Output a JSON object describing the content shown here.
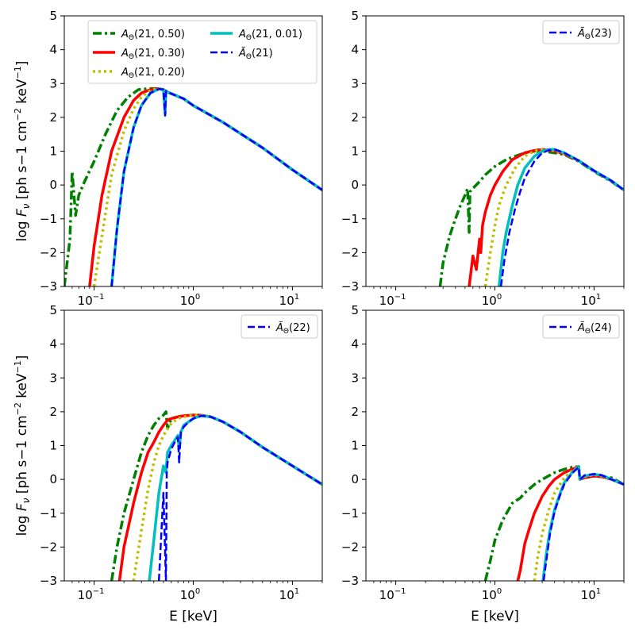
{
  "chart_data": [
    {
      "id": "tl",
      "type": "line",
      "xscale": "log",
      "xlim": [
        0.05,
        20
      ],
      "ylim": [
        -3,
        5
      ],
      "xlabel": "",
      "ylabel": "log F_ν [ph s−1 cm−2 keV−1]",
      "ytick_labels": [
        "−3",
        "−2",
        "−1",
        "0",
        "1",
        "2",
        "3",
        "4",
        "5"
      ],
      "xtick_labels": [
        "10^-1",
        "10^0",
        "10^1"
      ],
      "legend": {
        "placement": "upper-center",
        "columns": 2,
        "entries": [
          "AΘ(21, 0.50)",
          "AΘ(21, 0.30)",
          "AΘ(21, 0.20)",
          "AΘ(21, 0.01)",
          "ÃΘ(21)"
        ]
      },
      "series": [
        {
          "name": "AΘ(21, 0.50)",
          "color": "#008000",
          "style": "dashdot",
          "x": [
            0.05,
            0.057,
            0.06,
            0.065,
            0.07,
            0.08,
            0.1,
            0.13,
            0.17,
            0.22,
            0.28,
            0.35,
            0.42,
            0.5,
            0.55,
            0.6,
            0.8,
            1,
            2,
            5,
            10,
            20
          ],
          "y": [
            -3,
            -1.6,
            0.4,
            -0.9,
            -0.3,
            0.1,
            0.7,
            1.5,
            2.2,
            2.6,
            2.82,
            2.85,
            2.85,
            2.82,
            2.75,
            2.7,
            2.55,
            2.35,
            1.85,
            1.1,
            0.45,
            -0.15
          ]
        },
        {
          "name": "AΘ(21, 0.30)",
          "color": "#ff0000",
          "style": "solid",
          "x": [
            0.09,
            0.1,
            0.12,
            0.15,
            0.2,
            0.25,
            0.3,
            0.37,
            0.45,
            0.5,
            0.55,
            0.6,
            0.8,
            1,
            2,
            5,
            10,
            20
          ],
          "y": [
            -3,
            -1.8,
            -0.3,
            1.0,
            2.0,
            2.5,
            2.72,
            2.82,
            2.85,
            2.82,
            2.75,
            2.7,
            2.55,
            2.35,
            1.85,
            1.1,
            0.45,
            -0.15
          ]
        },
        {
          "name": "AΘ(21, 0.20)",
          "color": "#bfbf00",
          "style": "dotted",
          "x": [
            0.1,
            0.12,
            0.15,
            0.2,
            0.25,
            0.3,
            0.37,
            0.45,
            0.5,
            0.55,
            0.6,
            0.8,
            1,
            2,
            5,
            10,
            20
          ],
          "y": [
            -3,
            -1.5,
            0.3,
            1.6,
            2.25,
            2.6,
            2.8,
            2.85,
            2.82,
            2.75,
            2.7,
            2.55,
            2.35,
            1.85,
            1.1,
            0.45,
            -0.15
          ]
        },
        {
          "name": "AΘ(21, 0.01)",
          "color": "#00bfbf",
          "style": "solid",
          "x": [
            0.15,
            0.17,
            0.2,
            0.25,
            0.3,
            0.37,
            0.45,
            0.5,
            0.52,
            0.53,
            0.55,
            0.6,
            0.8,
            1,
            2,
            5,
            10,
            20
          ],
          "y": [
            -3,
            -1.3,
            0.4,
            1.7,
            2.35,
            2.72,
            2.84,
            2.82,
            2.1,
            2.78,
            2.75,
            2.7,
            2.55,
            2.35,
            1.85,
            1.1,
            0.45,
            -0.15
          ]
        },
        {
          "name": "ÃΘ(21)",
          "color": "#0000ff",
          "style": "dashed",
          "x": [
            0.15,
            0.17,
            0.2,
            0.25,
            0.3,
            0.37,
            0.45,
            0.5,
            0.52,
            0.53,
            0.55,
            0.6,
            0.8,
            1,
            2,
            5,
            10,
            20
          ],
          "y": [
            -3,
            -1.3,
            0.4,
            1.7,
            2.35,
            2.72,
            2.84,
            2.82,
            2.05,
            2.78,
            2.75,
            2.7,
            2.55,
            2.35,
            1.85,
            1.1,
            0.45,
            -0.15
          ]
        }
      ]
    },
    {
      "id": "tr",
      "type": "line",
      "xscale": "log",
      "xlim": [
        0.05,
        20
      ],
      "ylim": [
        -3,
        5
      ],
      "xlabel": "",
      "ylabel": "",
      "ytick_labels": [
        "−3",
        "−2",
        "−1",
        "0",
        "1",
        "2",
        "3",
        "4",
        "5"
      ],
      "xtick_labels": [
        "10^-1",
        "10^0",
        "10^1"
      ],
      "legend": {
        "placement": "upper-right",
        "columns": 1,
        "entries": [
          "ÃΘ(23)"
        ]
      },
      "series": [
        {
          "name": "",
          "color": "#008000",
          "style": "dashdot",
          "x": [
            0.28,
            0.3,
            0.35,
            0.4,
            0.45,
            0.5,
            0.53,
            0.55,
            0.56,
            0.6,
            0.7,
            0.8,
            1,
            1.3,
            1.6,
            2,
            2.5,
            3,
            4,
            5,
            7,
            10,
            15,
            20
          ],
          "y": [
            -3,
            -2.3,
            -1.5,
            -1.0,
            -0.6,
            -0.3,
            -0.1,
            -1.4,
            -0.2,
            -0.1,
            0.1,
            0.3,
            0.55,
            0.75,
            0.85,
            0.95,
            1.0,
            1.0,
            0.95,
            0.9,
            0.7,
            0.4,
            0.1,
            -0.15
          ]
        },
        {
          "name": "",
          "color": "#ff0000",
          "style": "solid",
          "x": [
            0.55,
            0.6,
            0.65,
            0.7,
            0.72,
            0.75,
            0.8,
            0.9,
            1,
            1.2,
            1.5,
            2,
            2.5,
            3,
            4,
            5,
            7,
            10,
            15,
            20
          ],
          "y": [
            -3,
            -2.1,
            -2.5,
            -1.6,
            -2.0,
            -1.2,
            -0.8,
            -0.3,
            0.0,
            0.4,
            0.75,
            0.95,
            1.02,
            1.05,
            1.0,
            0.92,
            0.72,
            0.42,
            0.12,
            -0.15
          ]
        },
        {
          "name": "",
          "color": "#bfbf00",
          "style": "dotted",
          "x": [
            0.8,
            0.9,
            1,
            1.1,
            1.3,
            1.6,
            2,
            2.5,
            3,
            4,
            5,
            7,
            10,
            15,
            20
          ],
          "y": [
            -3,
            -2.0,
            -1.2,
            -0.6,
            0.0,
            0.5,
            0.85,
            1.0,
            1.05,
            1.02,
            0.93,
            0.73,
            0.42,
            0.12,
            -0.15
          ]
        },
        {
          "name": "",
          "color": "#00bfbf",
          "style": "solid",
          "x": [
            1.1,
            1.2,
            1.3,
            1.5,
            1.7,
            2,
            2.5,
            3,
            3.5,
            4,
            5,
            7,
            10,
            15,
            20
          ],
          "y": [
            -3,
            -2.0,
            -1.4,
            -0.6,
            0.0,
            0.5,
            0.85,
            1.0,
            1.05,
            1.05,
            0.95,
            0.72,
            0.42,
            0.12,
            -0.15
          ]
        },
        {
          "name": "ÃΘ(23)",
          "color": "#0000ff",
          "style": "dashed",
          "x": [
            1.15,
            1.25,
            1.4,
            1.6,
            1.8,
            2,
            2.5,
            3,
            3.5,
            4,
            5,
            7,
            10,
            15,
            20
          ],
          "y": [
            -3,
            -2.2,
            -1.4,
            -0.7,
            -0.2,
            0.2,
            0.7,
            0.95,
            1.03,
            1.05,
            0.95,
            0.72,
            0.42,
            0.12,
            -0.15
          ]
        }
      ]
    },
    {
      "id": "bl",
      "type": "line",
      "xscale": "log",
      "xlim": [
        0.05,
        20
      ],
      "ylim": [
        -3,
        5
      ],
      "xlabel": "E [keV]",
      "ylabel": "log F_ν [ph s−1 cm−2 keV−1]",
      "ytick_labels": [
        "−3",
        "−2",
        "−1",
        "0",
        "1",
        "2",
        "3",
        "4",
        "5"
      ],
      "xtick_labels": [
        "10^-1",
        "10^0",
        "10^1"
      ],
      "legend": {
        "placement": "upper-right",
        "columns": 1,
        "entries": [
          "ÃΘ(22)"
        ]
      },
      "series": [
        {
          "name": "",
          "color": "#008000",
          "style": "dashdot",
          "x": [
            0.15,
            0.17,
            0.2,
            0.25,
            0.3,
            0.35,
            0.4,
            0.45,
            0.5,
            0.53,
            0.55,
            0.6,
            0.7,
            0.8,
            1,
            1.2,
            1.5,
            2,
            3,
            5,
            10,
            20
          ],
          "y": [
            -3,
            -2.0,
            -1.0,
            0.0,
            0.8,
            1.3,
            1.6,
            1.8,
            1.9,
            2.0,
            1.5,
            1.8,
            1.85,
            1.88,
            1.9,
            1.9,
            1.85,
            1.7,
            1.4,
            0.95,
            0.4,
            -0.15
          ]
        },
        {
          "name": "",
          "color": "#ff0000",
          "style": "solid",
          "x": [
            0.18,
            0.2,
            0.25,
            0.3,
            0.35,
            0.4,
            0.45,
            0.5,
            0.55,
            0.6,
            0.7,
            0.8,
            1,
            1.2,
            1.5,
            2,
            3,
            5,
            10,
            20
          ],
          "y": [
            -3,
            -2.0,
            -0.7,
            0.2,
            0.8,
            1.1,
            1.4,
            1.6,
            1.75,
            1.8,
            1.85,
            1.88,
            1.9,
            1.9,
            1.85,
            1.7,
            1.4,
            0.95,
            0.4,
            -0.15
          ]
        },
        {
          "name": "",
          "color": "#bfbf00",
          "style": "dotted",
          "x": [
            0.25,
            0.3,
            0.35,
            0.4,
            0.45,
            0.5,
            0.55,
            0.6,
            0.7,
            0.8,
            1,
            1.2,
            1.5,
            2,
            3,
            5,
            10,
            20
          ],
          "y": [
            -3,
            -1.5,
            -0.3,
            0.5,
            1.0,
            1.3,
            1.5,
            1.65,
            1.8,
            1.85,
            1.9,
            1.9,
            1.85,
            1.7,
            1.4,
            0.95,
            0.4,
            -0.15
          ]
        },
        {
          "name": "",
          "color": "#00bfbf",
          "style": "solid",
          "x": [
            0.36,
            0.4,
            0.45,
            0.5,
            0.53,
            0.55,
            0.6,
            0.7,
            0.72,
            0.75,
            0.8,
            1,
            1.2,
            1.5,
            2,
            3,
            5,
            10,
            20
          ],
          "y": [
            -3,
            -1.8,
            -0.4,
            0.4,
            0.2,
            0.8,
            1.0,
            1.3,
            0.9,
            1.4,
            1.6,
            1.8,
            1.88,
            1.85,
            1.7,
            1.4,
            0.95,
            0.4,
            -0.15
          ]
        },
        {
          "name": "ÃΘ(22)",
          "color": "#0000ff",
          "style": "dashed",
          "x": [
            0.45,
            0.5,
            0.53,
            0.54,
            0.55,
            0.6,
            0.65,
            0.7,
            0.72,
            0.75,
            0.8,
            0.9,
            1,
            1.2,
            1.5,
            2,
            3,
            5,
            10,
            20
          ],
          "y": [
            -3,
            -0.4,
            -3,
            0.2,
            0.5,
            0.9,
            1.1,
            1.25,
            0.5,
            1.4,
            1.55,
            1.7,
            1.8,
            1.88,
            1.85,
            1.7,
            1.4,
            0.95,
            0.4,
            -0.15
          ]
        }
      ]
    },
    {
      "id": "br",
      "type": "line",
      "xscale": "log",
      "xlim": [
        0.05,
        20
      ],
      "ylim": [
        -3,
        5
      ],
      "xlabel": "E [keV]",
      "ylabel": "",
      "ytick_labels": [
        "−3",
        "−2",
        "−1",
        "0",
        "1",
        "2",
        "3",
        "4",
        "5"
      ],
      "xtick_labels": [
        "10^-1",
        "10^0",
        "10^1"
      ],
      "legend": {
        "placement": "upper-right",
        "columns": 1,
        "entries": [
          "ÃΘ(24)"
        ]
      },
      "series": [
        {
          "name": "",
          "color": "#008000",
          "style": "dashdot",
          "x": [
            0.8,
            0.9,
            1,
            1.2,
            1.5,
            1.8,
            2,
            2.5,
            3,
            4,
            5,
            6,
            7,
            7.2,
            8,
            10,
            15,
            20
          ],
          "y": [
            -3,
            -2.4,
            -1.8,
            -1.2,
            -0.7,
            -0.55,
            -0.4,
            -0.15,
            0.0,
            0.2,
            0.3,
            0.36,
            0.38,
            0.0,
            0.05,
            0.1,
            0.05,
            -0.15
          ]
        },
        {
          "name": "",
          "color": "#ff0000",
          "style": "solid",
          "x": [
            1.7,
            1.8,
            2,
            2.2,
            2.5,
            3,
            3.5,
            4,
            5,
            6,
            7,
            7.2,
            8,
            10,
            12,
            15,
            20
          ],
          "y": [
            -3,
            -2.7,
            -1.9,
            -1.5,
            -1.0,
            -0.5,
            -0.2,
            0.0,
            0.2,
            0.3,
            0.38,
            0.0,
            0.05,
            0.1,
            0.08,
            0.0,
            -0.15
          ]
        },
        {
          "name": "",
          "color": "#bfbf00",
          "style": "dotted",
          "x": [
            2.5,
            2.7,
            3,
            3.5,
            4,
            5,
            6,
            7,
            7.2,
            8,
            10,
            12,
            15,
            20
          ],
          "y": [
            -3,
            -2.3,
            -1.6,
            -0.9,
            -0.4,
            0.05,
            0.25,
            0.38,
            0.0,
            0.08,
            0.14,
            0.1,
            0.0,
            -0.15
          ]
        },
        {
          "name": "",
          "color": "#00bfbf",
          "style": "solid",
          "x": [
            3.05,
            3.3,
            3.6,
            4,
            4.5,
            5,
            6,
            7,
            7.2,
            8,
            10,
            12,
            15,
            20
          ],
          "y": [
            -3,
            -2.2,
            -1.5,
            -0.9,
            -0.45,
            -0.1,
            0.2,
            0.38,
            0.0,
            0.1,
            0.15,
            0.12,
            0.0,
            -0.15
          ]
        },
        {
          "name": "ÃΘ(24)",
          "color": "#0000ff",
          "style": "dashed",
          "x": [
            3.1,
            3.3,
            3.6,
            4,
            4.5,
            5,
            6,
            7,
            7.2,
            8,
            10,
            12,
            15,
            20
          ],
          "y": [
            -3,
            -2.4,
            -1.6,
            -0.95,
            -0.5,
            -0.15,
            0.18,
            0.36,
            0.0,
            0.12,
            0.16,
            0.12,
            0.0,
            -0.15
          ]
        }
      ]
    }
  ]
}
